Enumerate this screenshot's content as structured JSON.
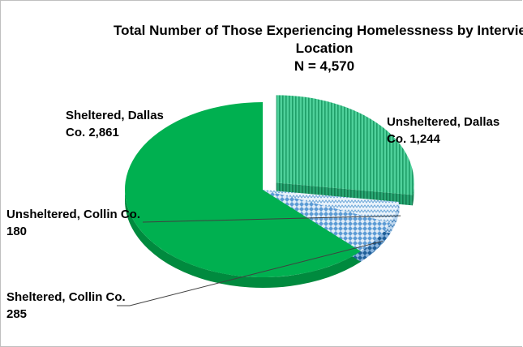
{
  "chart_data": {
    "type": "pie",
    "title": "Total Number of Those Experiencing Homelessness by Interview",
    "title_line2": "Location",
    "subtitle": "N = 4,570",
    "categories": [
      "Unsheltered, Dallas Co.",
      "Unsheltered, Collin Co.",
      "Sheltered, Collin Co.",
      "Sheltered, Dallas Co."
    ],
    "values": [
      1244,
      180,
      285,
      2861
    ],
    "slices": [
      {
        "name": "Unsheltered, Dallas Co.",
        "value": 1244,
        "label": "Unsheltered, Dallas\nCo. 1,244",
        "color": "#3cc48c",
        "exploded": true
      },
      {
        "name": "Unsheltered, Collin Co.",
        "value": 180,
        "label": "Unsheltered, Collin Co.\n180",
        "color": "#9dc3e6"
      },
      {
        "name": "Sheltered, Collin Co.",
        "value": 285,
        "label": "Sheltered, Collin Co.\n285",
        "color": "#2e75b6"
      },
      {
        "name": "Sheltered, Dallas Co.",
        "value": 2861,
        "label": "Sheltered, Dallas\nCo. 2,861",
        "color": "#00b050"
      }
    ],
    "legend": "none",
    "style": "3d-exploded-pie"
  }
}
